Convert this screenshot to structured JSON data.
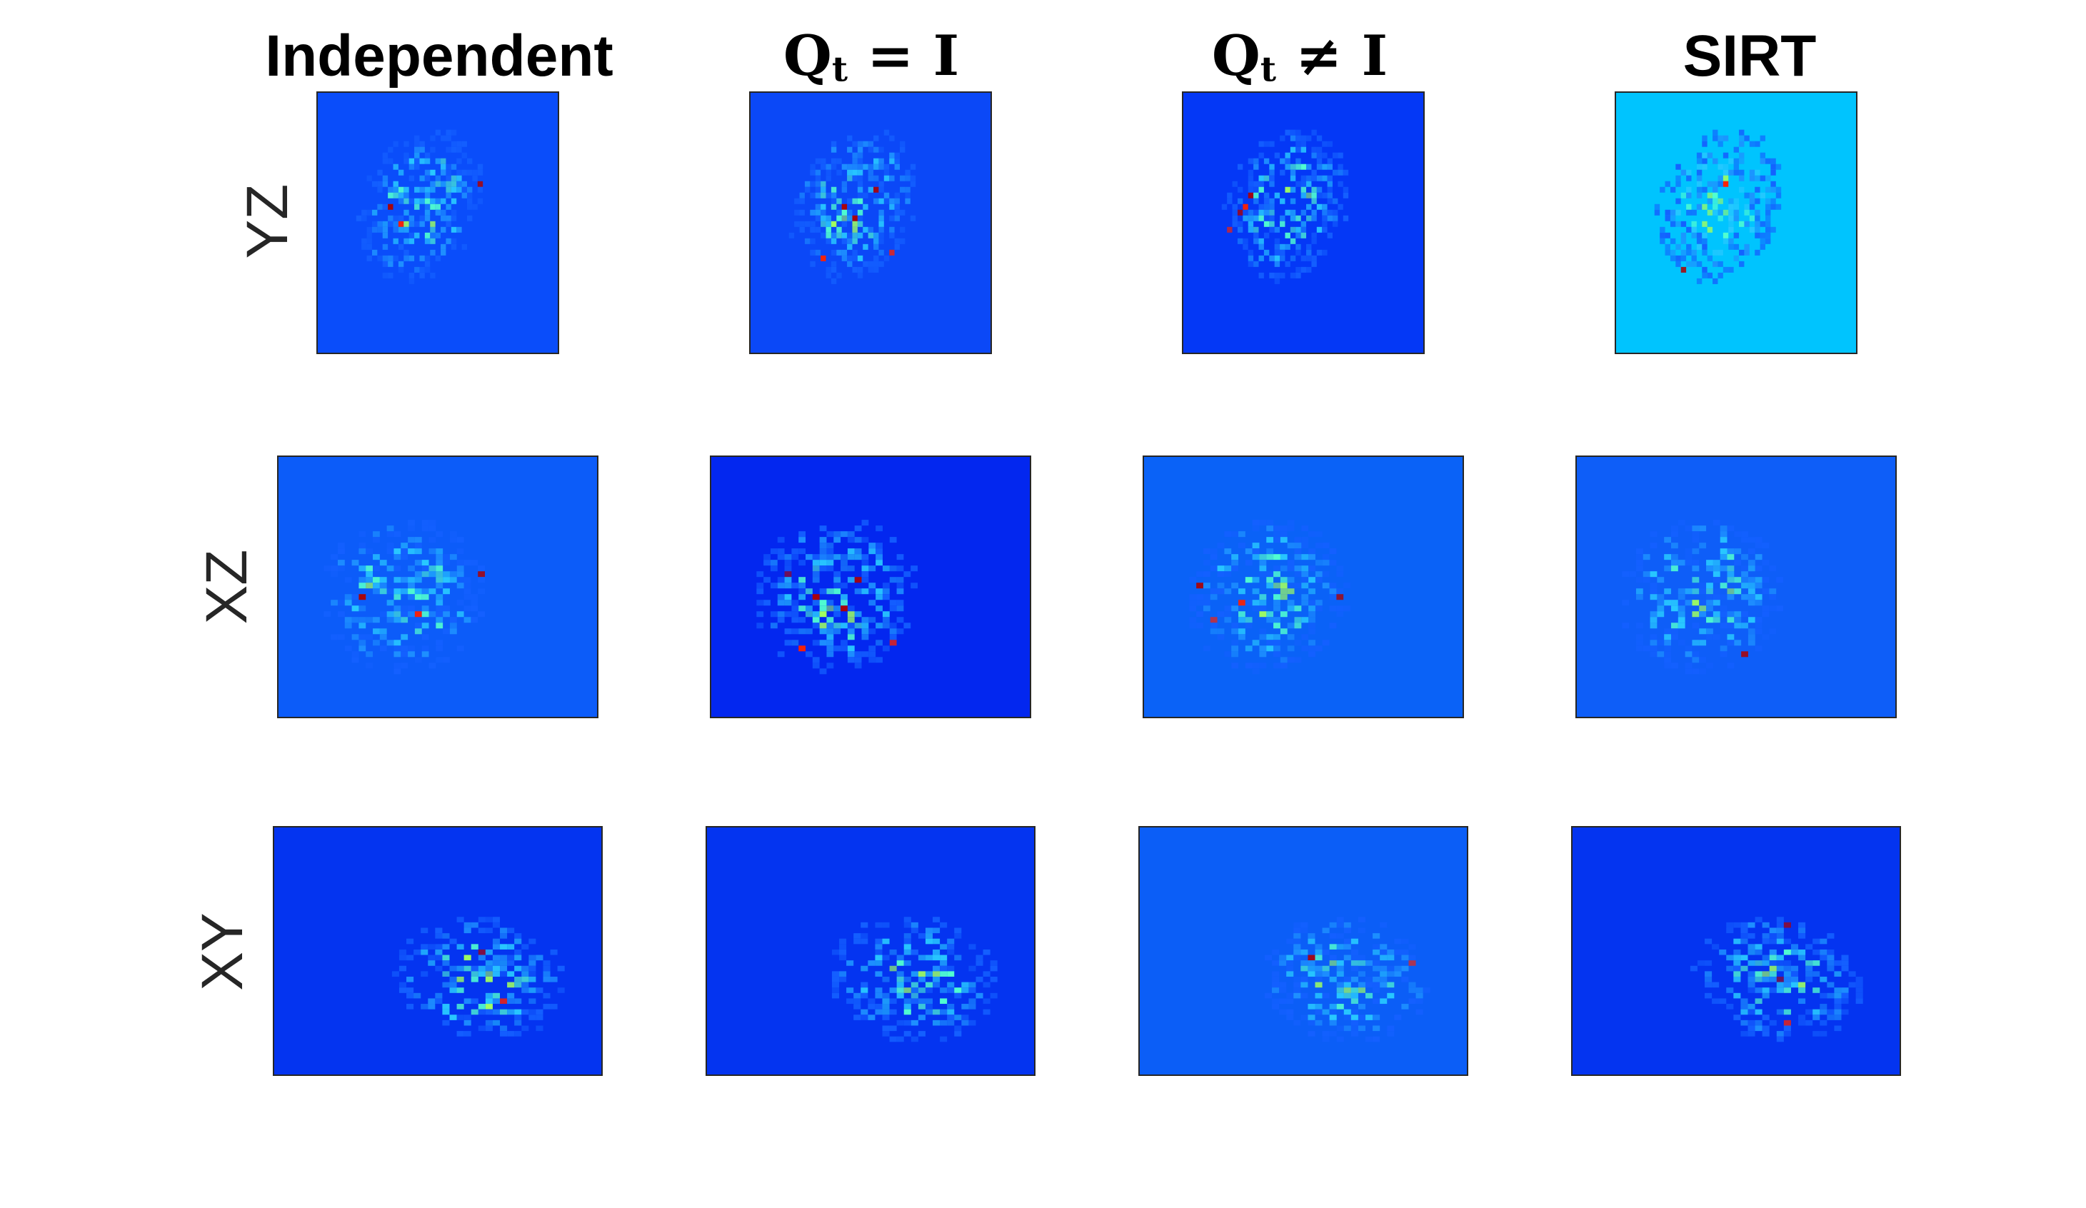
{
  "columns": [
    {
      "id": "independent",
      "title": "Independent"
    },
    {
      "id": "qt-eq-i",
      "title_main": "Q",
      "title_sub": "t",
      "title_rest": " = I"
    },
    {
      "id": "qt-neq-i",
      "title_main": "Q",
      "title_sub": "t",
      "title_rest": " ≠ I"
    },
    {
      "id": "sirt",
      "title": "SIRT"
    }
  ],
  "rows": [
    {
      "id": "yz",
      "label": "YZ"
    },
    {
      "id": "xz",
      "label": "XZ"
    },
    {
      "id": "xy",
      "label": "XY"
    }
  ],
  "panel_backgrounds": {
    "yz": [
      "#0a4dfa",
      "#0b48f7",
      "#0438f6",
      "#00c4fe"
    ],
    "xz": [
      "#0c5cf9",
      "#0327ef",
      "#0a62f7",
      "#0e5ef8"
    ],
    "xy": [
      "#0434f0",
      "#0434f0",
      "#0b5ef7",
      "#0434f0"
    ]
  },
  "colormap": "jet"
}
